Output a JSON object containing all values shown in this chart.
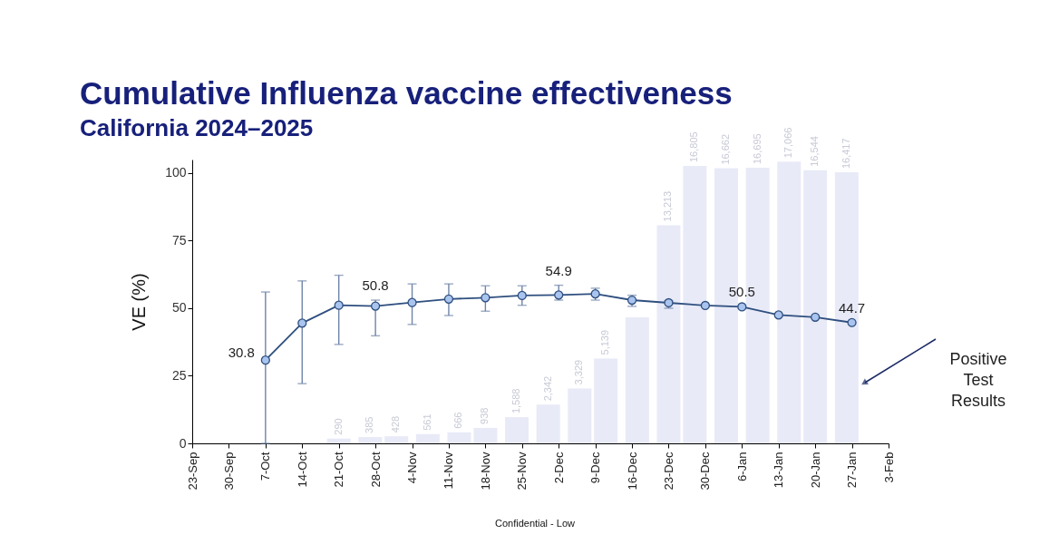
{
  "chart_data": {
    "type": "line",
    "title": "Cumulative Influenza vaccine effectiveness",
    "subtitle": "California 2024–2025",
    "ylabel": "VE (%)",
    "x": [
      "2024-10-07",
      "2024-10-14",
      "2024-10-21",
      "2024-10-28",
      "2024-11-04",
      "2024-11-11",
      "2024-11-18",
      "2024-11-25",
      "2024-12-02",
      "2024-12-09",
      "2024-12-16",
      "2024-12-23",
      "2024-12-30",
      "2025-01-06",
      "2025-01-13",
      "2025-01-20",
      "2025-01-27"
    ],
    "series": [
      {
        "color": "#2f4f7f",
        "marker": "circle",
        "line_style": "solid",
        "values": [
          30.8,
          44.5,
          51.1,
          50.8,
          52.1,
          53.4,
          53.9,
          54.7,
          54.9,
          55.3,
          53.0,
          52.0,
          51.0,
          50.5,
          47.5,
          46.7,
          44.7
        ],
        "errors": [
          [
            0,
            56
          ],
          [
            22.1,
            60.1
          ],
          [
            36.6,
            62.2
          ],
          [
            39.8,
            53.0
          ],
          [
            44.0,
            59.0
          ],
          [
            47.3,
            59.0
          ],
          [
            48.9,
            58.3
          ],
          [
            51.1,
            58.3
          ],
          [
            53.0,
            58.5
          ],
          [
            53.0,
            57.4
          ],
          [
            50.7,
            54.8
          ],
          [
            50.0,
            52.8
          ],
          null,
          null,
          null,
          null,
          null
        ],
        "value_labels": [
          "30.8",
          null,
          null,
          "50.8",
          null,
          null,
          null,
          null,
          "54.9",
          null,
          null,
          null,
          null,
          "50.5",
          null,
          null,
          "44.7"
        ]
      },
      {
        "type": "bar",
        "axis": "y2",
        "color": "#e8eaf7",
        "x": [
          "2024-10-21",
          "2024-10-27",
          "2024-11-01",
          "2024-11-07",
          "2024-11-13",
          "2024-11-18",
          "2024-11-24",
          "2024-11-30",
          "2024-12-06",
          "2024-12-11",
          "2024-12-17",
          "2024-12-23",
          "2024-12-28",
          "2025-01-03",
          "2025-01-09",
          "2025-01-15",
          "2025-01-20",
          "2025-01-26"
        ],
        "values": [
          290,
          385,
          428,
          561,
          666,
          938,
          1588,
          2342,
          3329,
          5139,
          7630,
          13213,
          16805,
          16662,
          16695,
          17066,
          16544,
          16417
        ],
        "value_labels": [
          "290",
          "385",
          "428",
          "561",
          "666",
          "938",
          "1,588",
          "2,342",
          "3,329",
          "5,139",
          null,
          "13,213",
          "16,805",
          "16,662",
          "16,695",
          "17,066",
          "16,544",
          "16,417"
        ]
      }
    ],
    "xlim": [
      "2024-09-23",
      "2025-02-03"
    ],
    "xticks": [
      {
        "value": "2024-09-23",
        "label": "23-Sep"
      },
      {
        "value": "2024-09-30",
        "label": "30-Sep"
      },
      {
        "value": "2024-10-07",
        "label": "7-Oct"
      },
      {
        "value": "2024-10-14",
        "label": "14-Oct"
      },
      {
        "value": "2024-10-21",
        "label": "21-Oct"
      },
      {
        "value": "2024-10-28",
        "label": "28-Oct"
      },
      {
        "value": "2024-11-04",
        "label": "4-Nov"
      },
      {
        "value": "2024-11-11",
        "label": "11-Nov"
      },
      {
        "value": "2024-11-18",
        "label": "18-Nov"
      },
      {
        "value": "2024-11-25",
        "label": "25-Nov"
      },
      {
        "value": "2024-12-02",
        "label": "2-Dec"
      },
      {
        "value": "2024-12-09",
        "label": "9-Dec"
      },
      {
        "value": "2024-12-16",
        "label": "16-Dec"
      },
      {
        "value": "2024-12-23",
        "label": "23-Dec"
      },
      {
        "value": "2024-12-30",
        "label": "30-Dec"
      },
      {
        "value": "2025-01-06",
        "label": "6-Jan"
      },
      {
        "value": "2025-01-13",
        "label": "13-Jan"
      },
      {
        "value": "2025-01-20",
        "label": "20-Jan"
      },
      {
        "value": "2025-01-27",
        "label": "27-Jan"
      },
      {
        "value": "2025-02-03",
        "label": "3-Feb"
      }
    ],
    "ylim": [
      0,
      105
    ],
    "yticks": [
      0,
      25,
      50,
      75,
      100
    ],
    "y2lim": [
      0,
      17190
    ],
    "annotations": [
      "Positive Test Results",
      "Confidential - Low"
    ]
  }
}
